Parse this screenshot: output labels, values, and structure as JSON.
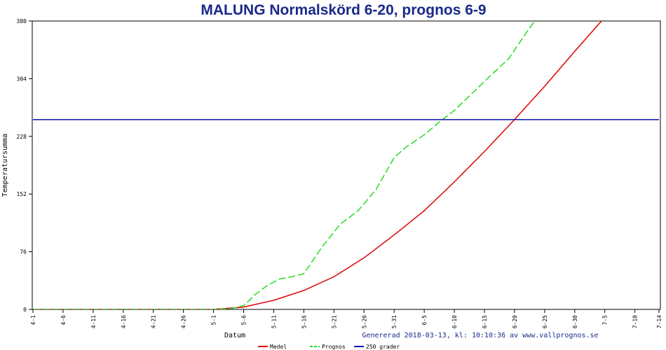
{
  "chart_data": {
    "type": "line",
    "title": "MALUNG Normalskörd 6-20, prognos 6-9",
    "xlabel": "Datum",
    "ylabel": "Temperatursumma",
    "footer": "Genererad 2018-03-13, kl: 10:10:36 av www.vallprognos.se",
    "ylim": [
      0,
      380
    ],
    "yticks": [
      0,
      76,
      152,
      228,
      304,
      380
    ],
    "x_start": "4-1",
    "x_end": "7-14",
    "xticks": [
      "4-1",
      "4-6",
      "4-11",
      "4-16",
      "4-21",
      "4-26",
      "5-1",
      "5-6",
      "5-11",
      "5-16",
      "5-21",
      "5-26",
      "5-31",
      "6-5",
      "6-10",
      "6-15",
      "6-20",
      "6-25",
      "6-30",
      "7-5",
      "7-10",
      "7-14"
    ],
    "grid": false,
    "legend_position": "bottom",
    "series": [
      {
        "name": "Medel",
        "color": "#dd0000",
        "style": "solid",
        "x": [
          "4-1",
          "5-1",
          "5-6",
          "5-11",
          "5-16",
          "5-21",
          "5-26",
          "5-31",
          "6-5",
          "6-10",
          "6-15",
          "6-20",
          "6-25",
          "6-30",
          "7-5",
          "7-8"
        ],
        "values": [
          0,
          0,
          3,
          12,
          25,
          43,
          68,
          98,
          130,
          168,
          208,
          250,
          294,
          340,
          385,
          410
        ]
      },
      {
        "name": "Prognos",
        "color": "#22dd22",
        "style": "dashed",
        "x": [
          "4-1",
          "5-1",
          "5-4",
          "5-6",
          "5-8",
          "5-10",
          "5-12",
          "5-14",
          "5-16",
          "5-19",
          "5-22",
          "5-25",
          "5-28",
          "5-31",
          "6-2",
          "6-5",
          "6-8",
          "6-10",
          "6-13",
          "6-16",
          "6-19",
          "6-22",
          "6-25",
          "6-26"
        ],
        "values": [
          0,
          0,
          1,
          5,
          20,
          32,
          40,
          43,
          47,
          82,
          112,
          130,
          158,
          200,
          214,
          230,
          250,
          262,
          285,
          308,
          330,
          365,
          398,
          410
        ]
      },
      {
        "name": "250 grader",
        "color": "#0a10aa",
        "style": "solid",
        "x": [
          "4-1",
          "7-14"
        ],
        "values": [
          250,
          250
        ]
      }
    ]
  }
}
